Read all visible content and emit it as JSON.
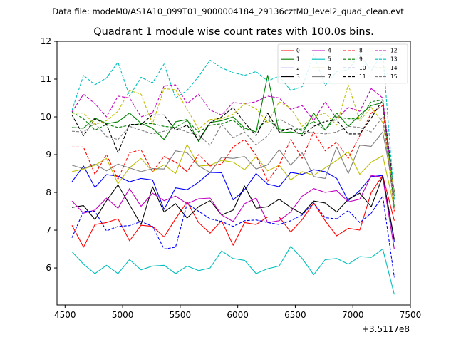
{
  "chart_data": {
    "type": "line",
    "suptitle": "Data file: modeM0/AS1A10_099T01_9000004184_29136cztM0_level2_quad_clean.evt",
    "title": "Quadrant 1 module wise count rates with 100.0s bins.",
    "xlabel": "",
    "ylabel": "",
    "x_offset_label": "+3.5117e8",
    "xlim": [
      4430,
      7500
    ],
    "ylim": [
      5.02,
      12.0
    ],
    "xticks": [
      4500,
      5000,
      5500,
      6000,
      6500,
      7000,
      7500
    ],
    "yticks": [
      6,
      7,
      8,
      9,
      10,
      11,
      12
    ],
    "x": [
      4560,
      4660,
      4760,
      4860,
      4960,
      5060,
      5160,
      5260,
      5360,
      5460,
      5560,
      5660,
      5760,
      5860,
      5960,
      6060,
      6160,
      6260,
      6360,
      6460,
      6560,
      6660,
      6760,
      6860,
      6960,
      7060,
      7160,
      7260,
      7360
    ],
    "series": [
      {
        "name": "0",
        "color": "#ff0000",
        "dash": "solid",
        "values": [
          7.13,
          6.55,
          7.15,
          7.2,
          7.3,
          6.72,
          7.13,
          7.1,
          6.82,
          7.3,
          7.75,
          7.2,
          6.92,
          7.25,
          6.6,
          7.2,
          7.15,
          7.35,
          7.35,
          6.95,
          7.28,
          7.72,
          7.25,
          6.85,
          7.05,
          7.0,
          8.0,
          8.45,
          7.25
        ]
      },
      {
        "name": "1",
        "color": "#008000",
        "dash": "solid",
        "values": [
          9.72,
          9.7,
          9.97,
          9.82,
          9.87,
          10.1,
          9.83,
          9.7,
          9.4,
          9.87,
          9.93,
          9.35,
          9.85,
          9.9,
          10.0,
          9.7,
          9.6,
          11.1,
          9.58,
          9.6,
          9.55,
          10.1,
          9.65,
          10.1,
          9.75,
          10.05,
          10.3,
          10.38,
          7.9
        ]
      },
      {
        "name": "2",
        "color": "#0000ff",
        "dash": "solid",
        "values": [
          8.28,
          8.7,
          8.13,
          8.47,
          8.43,
          8.28,
          8.37,
          8.33,
          7.55,
          8.12,
          8.07,
          8.27,
          8.53,
          8.52,
          7.8,
          8.07,
          8.5,
          8.22,
          8.15,
          8.53,
          8.48,
          8.6,
          8.55,
          8.37,
          7.78,
          8.05,
          8.42,
          8.45,
          6.7
        ]
      },
      {
        "name": "3",
        "color": "#000000",
        "dash": "solid",
        "values": [
          7.6,
          7.65,
          7.28,
          7.78,
          8.2,
          7.67,
          7.15,
          8.15,
          7.48,
          7.7,
          7.32,
          7.62,
          7.78,
          7.4,
          7.53,
          8.17,
          7.58,
          7.62,
          7.82,
          7.6,
          7.43,
          7.77,
          7.72,
          7.48,
          7.82,
          7.98,
          7.62,
          8.43,
          6.75
        ]
      },
      {
        "name": "4",
        "color": "#c000c0",
        "dash": "solid",
        "values": [
          7.77,
          7.45,
          7.53,
          7.85,
          7.58,
          8.1,
          7.63,
          7.98,
          7.78,
          7.9,
          7.7,
          7.83,
          7.85,
          7.4,
          7.23,
          7.7,
          7.85,
          7.2,
          7.25,
          7.48,
          7.9,
          8.1,
          8.0,
          8.05,
          7.75,
          7.82,
          8.45,
          8.4,
          6.5
        ]
      },
      {
        "name": "5",
        "color": "#00bfbf",
        "dash": "solid",
        "values": [
          6.43,
          6.1,
          5.85,
          6.07,
          5.85,
          6.22,
          5.95,
          6.05,
          6.07,
          5.85,
          6.05,
          5.93,
          6.0,
          6.45,
          6.25,
          6.2,
          5.85,
          5.98,
          6.05,
          6.57,
          6.25,
          5.82,
          6.22,
          6.25,
          6.1,
          6.3,
          6.28,
          6.5,
          5.3
        ]
      },
      {
        "name": "6",
        "color": "#bfbf00",
        "dash": "solid",
        "values": [
          8.55,
          8.62,
          8.72,
          8.9,
          8.23,
          8.65,
          8.9,
          8.55,
          8.73,
          8.5,
          9.27,
          8.7,
          8.72,
          8.85,
          8.8,
          8.6,
          8.95,
          8.57,
          8.72,
          8.33,
          8.55,
          8.45,
          8.65,
          8.85,
          9.08,
          8.48,
          8.8,
          8.97,
          7.6
        ]
      },
      {
        "name": "7",
        "color": "#808080",
        "dash": "solid",
        "values": [
          8.72,
          8.63,
          8.75,
          8.57,
          8.75,
          8.65,
          8.55,
          8.63,
          8.62,
          9.1,
          9.05,
          8.7,
          8.53,
          8.93,
          8.9,
          8.95,
          8.62,
          8.73,
          9.13,
          8.72,
          9.05,
          8.42,
          8.37,
          9.2,
          8.5,
          9.25,
          9.22,
          9.6,
          8.0
        ]
      },
      {
        "name": "8",
        "color": "#ff0000",
        "dash": "dashed",
        "values": [
          9.2,
          9.2,
          8.48,
          9.0,
          8.35,
          9.05,
          9.13,
          8.55,
          8.95,
          8.8,
          8.55,
          9.0,
          8.7,
          8.75,
          9.2,
          9.4,
          8.98,
          8.3,
          8.72,
          9.4,
          8.9,
          9.6,
          9.1,
          9.33,
          8.9,
          9.5,
          10.1,
          10.3,
          7.5
        ]
      },
      {
        "name": "9",
        "color": "#008000",
        "dash": "dashed",
        "values": [
          10.13,
          9.95,
          9.65,
          9.8,
          9.72,
          9.78,
          9.82,
          9.82,
          9.75,
          9.72,
          9.9,
          9.6,
          9.78,
          9.82,
          9.92,
          9.65,
          9.65,
          9.93,
          9.68,
          9.65,
          9.68,
          9.88,
          9.65,
          10.0,
          9.95,
          9.95,
          10.4,
          10.45,
          7.6
        ]
      },
      {
        "name": "10",
        "color": "#0000ff",
        "dash": "dashed",
        "values": [
          6.8,
          7.5,
          7.5,
          6.98,
          7.1,
          7.12,
          7.23,
          7.1,
          6.5,
          6.55,
          7.7,
          7.5,
          7.3,
          7.23,
          7.1,
          7.25,
          7.27,
          7.2,
          7.15,
          7.25,
          7.4,
          7.72,
          7.33,
          7.3,
          7.52,
          7.2,
          7.45,
          7.9,
          5.75
        ]
      },
      {
        "name": "11",
        "color": "#000000",
        "dash": "dashed",
        "values": [
          10.05,
          9.5,
          9.95,
          9.8,
          9.05,
          9.8,
          9.8,
          10.05,
          10.05,
          9.65,
          9.78,
          9.38,
          9.85,
          10.0,
          10.25,
          9.85,
          9.5,
          10.1,
          9.6,
          9.7,
          9.5,
          9.75,
          9.88,
          9.92,
          9.55,
          9.55,
          9.97,
          10.45,
          8.0
        ]
      },
      {
        "name": "12",
        "color": "#c000c0",
        "dash": "dashed",
        "values": [
          10.13,
          10.6,
          10.35,
          10.0,
          10.55,
          10.5,
          10.0,
          10.1,
          10.82,
          10.85,
          10.35,
          10.6,
          10.18,
          10.05,
          10.38,
          10.35,
          10.4,
          10.55,
          10.5,
          10.2,
          10.3,
          9.9,
          10.4,
          9.95,
          10.25,
          10.15,
          10.75,
          10.5,
          7.8
        ]
      },
      {
        "name": "13",
        "color": "#00bfbf",
        "dash": "dashed",
        "values": [
          10.17,
          11.1,
          10.85,
          11.03,
          11.45,
          10.55,
          11.05,
          10.9,
          11.4,
          10.5,
          10.7,
          11.07,
          11.5,
          11.3,
          11.17,
          11.1,
          11.2,
          10.95,
          11.08,
          10.7,
          10.8,
          11.65,
          10.83,
          11.2,
          11.25,
          11.65,
          11.22,
          11.7,
          7.8
        ]
      },
      {
        "name": "14",
        "color": "#bfbf00",
        "dash": "dashed",
        "values": [
          10.1,
          10.1,
          9.8,
          9.9,
          10.15,
          10.7,
          10.6,
          9.82,
          10.75,
          10.72,
          10.2,
          9.68,
          9.93,
          9.95,
          10.07,
          10.35,
          10.22,
          9.85,
          10.4,
          10.23,
          9.75,
          10.0,
          10.1,
          9.78,
          10.85,
          9.9,
          10.25,
          9.85,
          8.0
        ]
      },
      {
        "name": "15",
        "color": "#808080",
        "dash": "dashed",
        "values": [
          9.62,
          9.6,
          9.83,
          9.48,
          9.4,
          9.75,
          9.65,
          9.55,
          9.62,
          9.72,
          9.6,
          9.52,
          9.25,
          9.8,
          9.45,
          9.6,
          9.25,
          9.5,
          9.95,
          9.78,
          9.62,
          9.58,
          9.55,
          9.6,
          9.75,
          9.72,
          9.6,
          10.0,
          7.6
        ]
      }
    ],
    "legend": {
      "placement": "upper-right",
      "columns": 4
    },
    "grid": false
  }
}
